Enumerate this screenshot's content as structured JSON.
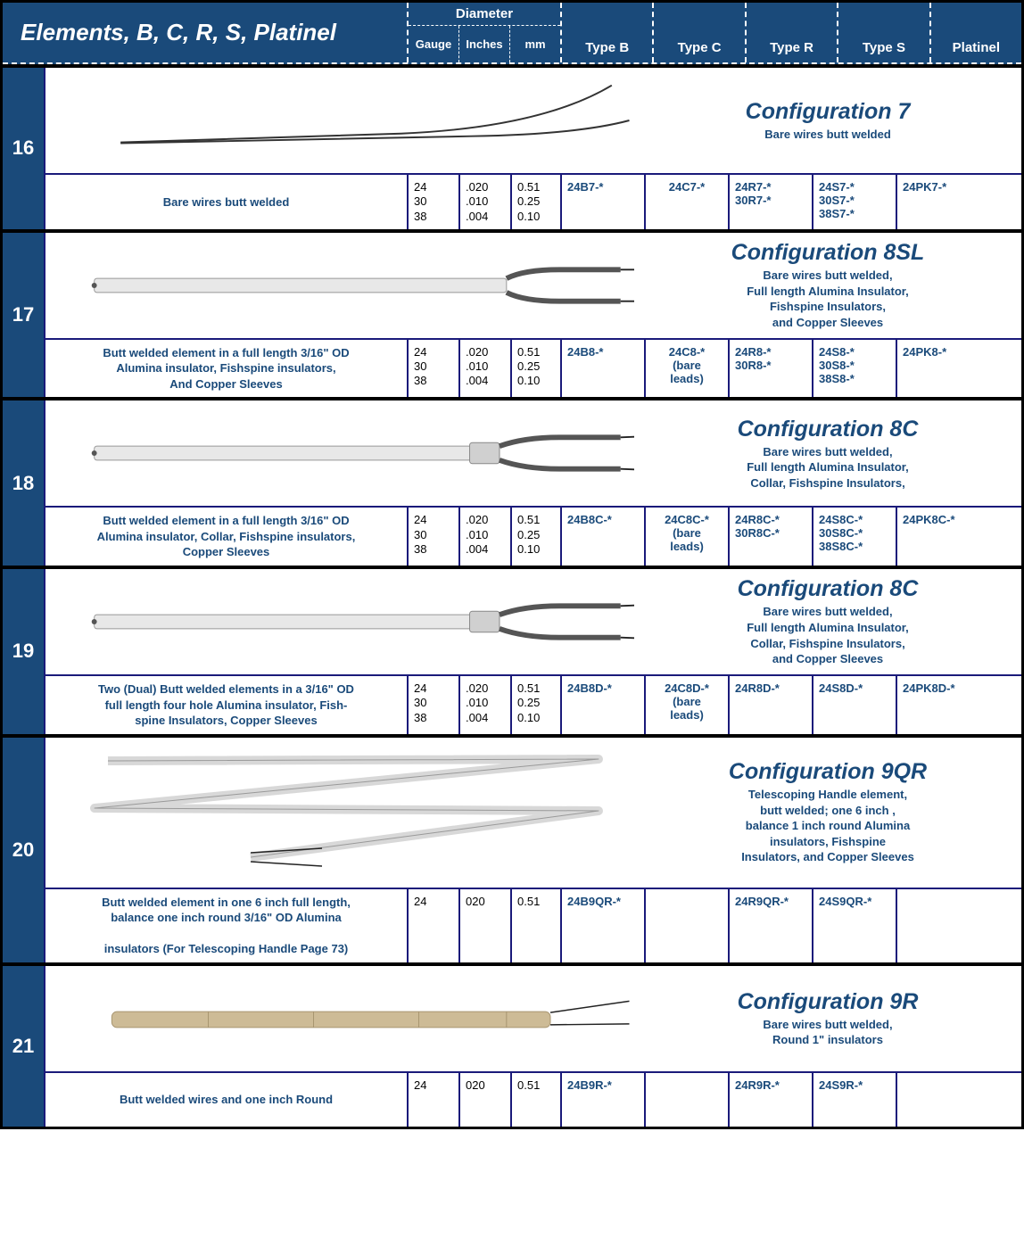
{
  "colors": {
    "header_bg": "#1a4a7a",
    "border_blue": "#1a1a7a",
    "border_black": "#000000",
    "text_blue": "#1a4a7a",
    "text_white": "#ffffff"
  },
  "header": {
    "title": "Elements, B, C, R, S, Platinel",
    "diameter_label": "Diameter",
    "cols": {
      "gauge": "Gauge",
      "inches": "Inches",
      "mm": "mm"
    },
    "types": [
      "Type B",
      "Type C",
      "Type R",
      "Type S",
      "Platinel"
    ]
  },
  "rows": [
    {
      "num": "16",
      "config_name": "Configuration 7",
      "config_desc": "Bare wires butt welded",
      "desc": "Bare wires butt welded",
      "gauge": "24\n30\n38",
      "inches": ".020\n.010\n.004",
      "mm": "0.51\n0.25\n0.10",
      "type_b": "24B7-*",
      "type_c": "24C7-*",
      "type_r": "24R7-*\n30R7-*",
      "type_s": "24S7-*\n30S7-*\n38S7-*",
      "platinel": "24PK7-*",
      "svg": "wires"
    },
    {
      "num": "17",
      "config_name": "Configuration 8SL",
      "config_desc": "Bare wires butt welded,\nFull length Alumina Insulator,\nFishspine Insulators,\nand Copper Sleeves",
      "desc": "Butt welded element in a full length 3/16\" OD\nAlumina insulator, Fishspine insulators,\nAnd Copper Sleeves",
      "gauge": "24\n30\n38",
      "inches": ".020\n.010\n.004",
      "mm": "0.51\n0.25\n0.10",
      "type_b": "24B8-*",
      "type_c": "24C8-*\n(bare\nleads)",
      "type_r": "24R8-*\n30R8-*",
      "type_s": "24S8-*\n30S8-*\n38S8-*",
      "platinel": "24PK8-*",
      "svg": "rod-fish"
    },
    {
      "num": "18",
      "config_name": "Configuration 8C",
      "config_desc": "Bare wires butt welded,\nFull length Alumina Insulator,\nCollar, Fishspine Insulators,",
      "desc": "Butt welded element in a full length 3/16\" OD\nAlumina insulator, Collar, Fishspine insulators,\nCopper Sleeves",
      "gauge": "24\n30\n38",
      "inches": ".020\n.010\n.004",
      "mm": "0.51\n0.25\n0.10",
      "type_b": "24B8C-*",
      "type_c": "24C8C-*\n(bare\nleads)",
      "type_r": "24R8C-*\n30R8C-*",
      "type_s": "24S8C-*\n30S8C-*\n38S8C-*",
      "platinel": "24PK8C-*",
      "svg": "rod-collar"
    },
    {
      "num": "19",
      "config_name": "Configuration 8C",
      "config_desc": "Bare wires butt welded,\nFull length Alumina Insulator,\nCollar, Fishspine Insulators,\nand Copper Sleeves",
      "desc": "Two (Dual) Butt welded elements in a 3/16\" OD\nfull length four hole Alumina insulator, Fish-\nspine Insulators, Copper Sleeves",
      "gauge": "24\n30\n38",
      "inches": ".020\n.010\n.004",
      "mm": "0.51\n0.25\n0.10",
      "type_b": "24B8D-*",
      "type_c": "24C8D-*\n(bare\nleads)",
      "type_r": "24R8D-*",
      "type_s": "24S8D-*",
      "platinel": "24PK8D-*",
      "svg": "rod-collar"
    },
    {
      "num": "20",
      "config_name": "Configuration 9QR",
      "config_desc": "Telescoping Handle element,\nbutt welded; one 6 inch ,\nbalance 1 inch round Alumina\ninsulators, Fishspine\nInsulators, and Copper Sleeves",
      "desc": "Butt welded element in one 6 inch full length,\nbalance one inch round  3/16\" OD Alumina\n\ninsulators (For Telescoping Handle Page 73)",
      "gauge": "24",
      "inches": "020",
      "mm": "0.51",
      "type_b": "24B9QR-*",
      "type_c": "",
      "type_r": "24R9QR-*",
      "type_s": "24S9QR-*",
      "platinel": "",
      "svg": "zigzag",
      "tall": true
    },
    {
      "num": "21",
      "config_name": "Configuration 9R",
      "config_desc": "Bare wires butt welded,\nRound 1\" insulators",
      "desc": "Butt welded wires and one inch Round",
      "gauge": "24",
      "inches": "020",
      "mm": "0.51",
      "type_b": "24B9R-*",
      "type_c": "",
      "type_r": "24R9R-*",
      "type_s": "24S9R-*",
      "platinel": "",
      "svg": "round"
    }
  ]
}
